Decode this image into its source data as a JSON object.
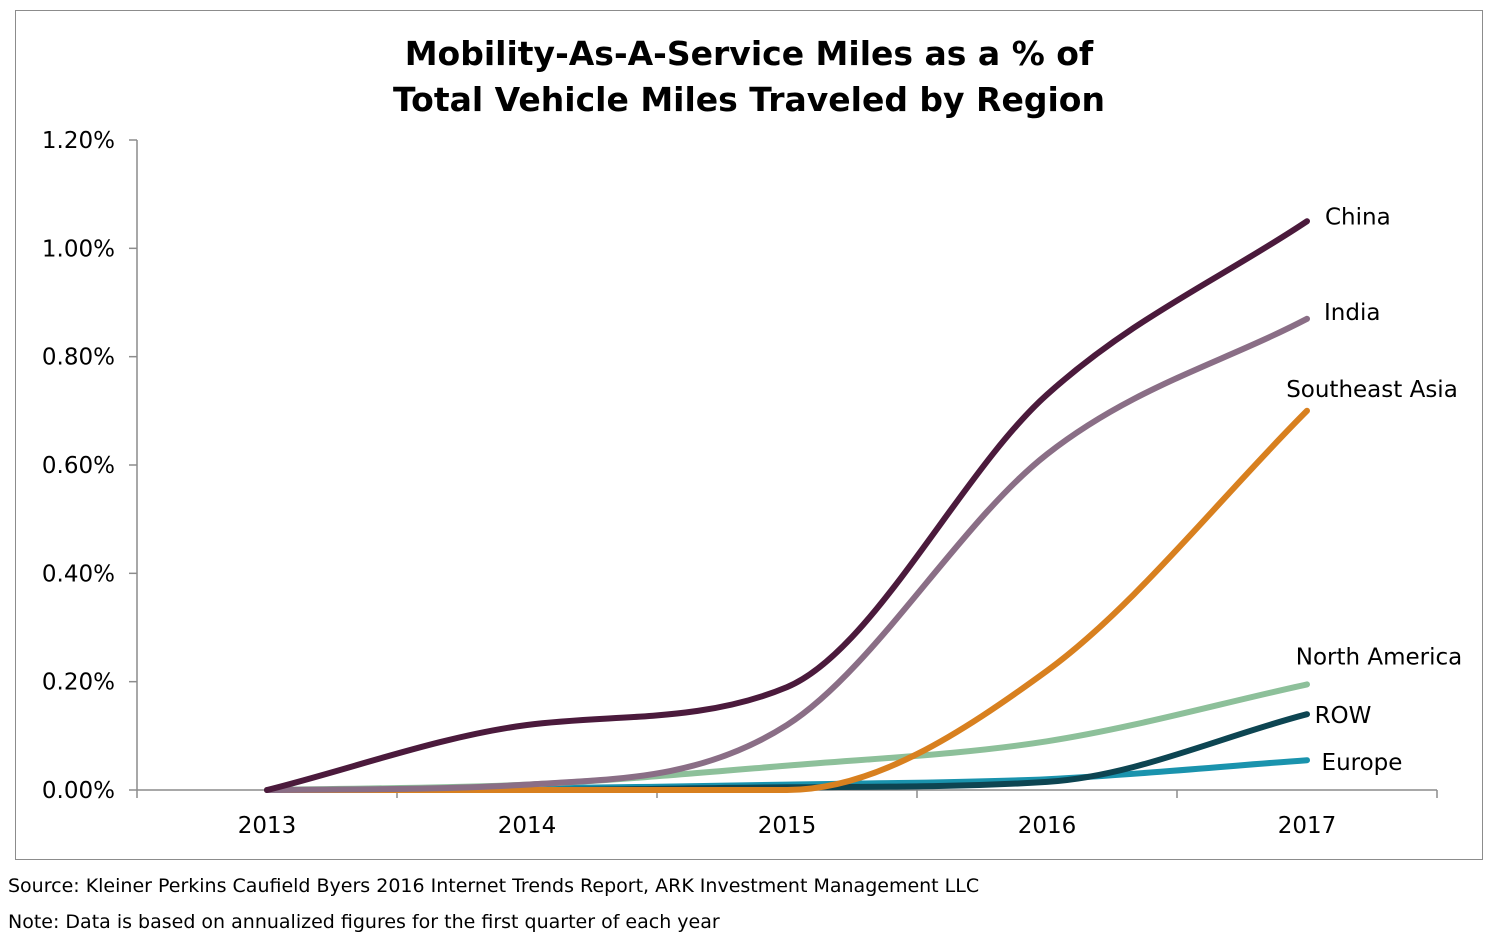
{
  "chart_data": {
    "type": "line",
    "title": [
      "Mobility-As-A-Service Miles as a % of",
      "Total Vehicle Miles Traveled by Region"
    ],
    "xlabel": "",
    "ylabel": "",
    "x": [
      2013,
      2014,
      2015,
      2016,
      2017
    ],
    "x_tick_labels": [
      "2013",
      "2014",
      "2015",
      "2016",
      "2017"
    ],
    "ylim": [
      0,
      1.2
    ],
    "y_ticks": [
      0,
      0.2,
      0.4,
      0.6,
      0.8,
      1.0,
      1.2
    ],
    "y_tick_labels": [
      "0.00%",
      "0.20%",
      "0.40%",
      "0.60%",
      "0.80%",
      "1.00%",
      "1.20%"
    ],
    "grid": false,
    "legend": "inline labels at line ends",
    "series": [
      {
        "name": "China",
        "color": "#4b1a3c",
        "values": [
          0.0,
          0.12,
          0.19,
          0.73,
          1.05
        ]
      },
      {
        "name": "India",
        "color": "#8a6e86",
        "values": [
          0.0,
          0.01,
          0.12,
          0.62,
          0.87
        ]
      },
      {
        "name": "Southeast Asia",
        "color": "#d8801f",
        "values": [
          0.0,
          0.0,
          0.0,
          0.22,
          0.7
        ]
      },
      {
        "name": "North America",
        "color": "#8dc09a",
        "values": [
          0.0,
          0.01,
          0.045,
          0.09,
          0.195
        ]
      },
      {
        "name": "ROW",
        "color": "#0d4552",
        "values": [
          0.0,
          0.0,
          0.005,
          0.015,
          0.14
        ]
      },
      {
        "name": "Europe",
        "color": "#1a93ad",
        "values": [
          0.0,
          0.003,
          0.01,
          0.02,
          0.055
        ]
      }
    ]
  },
  "footer": {
    "source": "Source: Kleiner Perkins Caufield Byers 2016 Internet Trends Report, ARK Investment Management LLC",
    "note": "Note: Data is based on annualized figures for the first quarter of each year"
  }
}
